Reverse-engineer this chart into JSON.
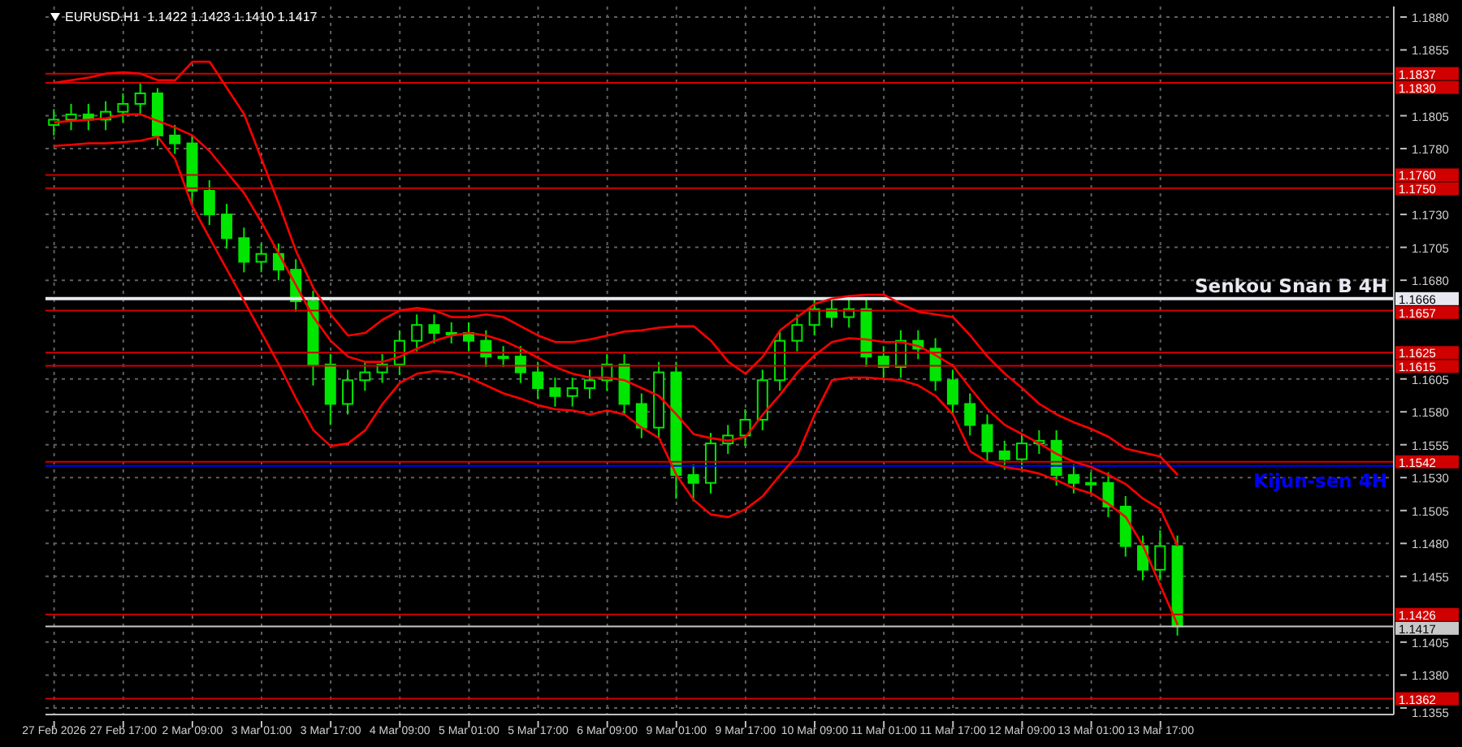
{
  "chart_data": {
    "type": "candlestick",
    "title": "EURUSD.H1  1.1422 1.1423 1.1410 1.1417",
    "color": "#00e600",
    "grid": true,
    "categories": [
      "27 Feb 2026",
      null,
      null,
      null,
      "27 Feb 17:00",
      null,
      null,
      null,
      "2 Mar 09:00",
      null,
      null,
      null,
      "3 Mar 01:00",
      null,
      null,
      null,
      "3 Mar 17:00",
      null,
      null,
      null,
      "4 Mar 09:00",
      null,
      null,
      null,
      "5 Mar 01:00",
      null,
      null,
      null,
      "5 Mar 17:00",
      null,
      null,
      null,
      "6 Mar 09:00",
      null,
      null,
      null,
      "9 Mar 01:00",
      null,
      null,
      null,
      "9 Mar 17:00",
      null,
      null,
      null,
      "10 Mar 09:00",
      null,
      null,
      null,
      "11 Mar 01:00",
      null,
      null,
      null,
      "11 Mar 17:00",
      null,
      null,
      null,
      "12 Mar 09:00",
      null,
      null,
      null,
      "13 Mar 01:00",
      null,
      null,
      null,
      "13 Mar 17:00",
      null,
      null,
      null,
      null,
      null,
      null,
      null,
      null,
      null,
      null,
      null,
      null,
      null
    ],
    "ohlc": [
      [
        1.1798,
        1.181,
        1.179,
        1.1802
      ],
      [
        1.1802,
        1.1814,
        1.1794,
        1.1806
      ],
      [
        1.1806,
        1.1814,
        1.1794,
        1.1802
      ],
      [
        1.1802,
        1.1816,
        1.1794,
        1.1808
      ],
      [
        1.1808,
        1.1822,
        1.18,
        1.1814
      ],
      [
        1.1814,
        1.183,
        1.1806,
        1.1822
      ],
      [
        1.1822,
        1.1826,
        1.1782,
        1.179
      ],
      [
        1.179,
        1.1798,
        1.1776,
        1.1784
      ],
      [
        1.1784,
        1.179,
        1.174,
        1.1748
      ],
      [
        1.1748,
        1.1756,
        1.1722,
        1.173
      ],
      [
        1.173,
        1.1738,
        1.1704,
        1.1712
      ],
      [
        1.1712,
        1.172,
        1.1686,
        1.1694
      ],
      [
        1.1694,
        1.1708,
        1.1686,
        1.17
      ],
      [
        1.17,
        1.1708,
        1.168,
        1.1688
      ],
      [
        1.1688,
        1.1696,
        1.1656,
        1.1664
      ],
      [
        1.1664,
        1.1672,
        1.16,
        1.1616
      ],
      [
        1.1616,
        1.1624,
        1.157,
        1.1586
      ],
      [
        1.1586,
        1.1612,
        1.1578,
        1.1604
      ],
      [
        1.1604,
        1.1618,
        1.1596,
        1.161
      ],
      [
        1.161,
        1.1624,
        1.1602,
        1.1616
      ],
      [
        1.1616,
        1.1642,
        1.1608,
        1.1634
      ],
      [
        1.1634,
        1.1654,
        1.1626,
        1.1646
      ],
      [
        1.1646,
        1.1654,
        1.1632,
        1.164
      ],
      [
        1.164,
        1.1648,
        1.1632,
        1.164
      ],
      [
        1.164,
        1.1648,
        1.1626,
        1.1634
      ],
      [
        1.1634,
        1.1642,
        1.1614,
        1.1622
      ],
      [
        1.1622,
        1.163,
        1.1614,
        1.1622
      ],
      [
        1.1622,
        1.163,
        1.1602,
        1.161
      ],
      [
        1.161,
        1.1618,
        1.159,
        1.1598
      ],
      [
        1.1598,
        1.1606,
        1.1584,
        1.1592
      ],
      [
        1.1592,
        1.1606,
        1.1584,
        1.1598
      ],
      [
        1.1598,
        1.1612,
        1.159,
        1.1604
      ],
      [
        1.1604,
        1.1624,
        1.1596,
        1.1616
      ],
      [
        1.1616,
        1.1624,
        1.1578,
        1.1586
      ],
      [
        1.1586,
        1.1594,
        1.156,
        1.1568
      ],
      [
        1.1568,
        1.1618,
        1.156,
        1.161
      ],
      [
        1.161,
        1.1618,
        1.1514,
        1.1532
      ],
      [
        1.1532,
        1.154,
        1.1512,
        1.1526
      ],
      [
        1.1526,
        1.1564,
        1.1518,
        1.1556
      ],
      [
        1.1556,
        1.157,
        1.1548,
        1.1562
      ],
      [
        1.1562,
        1.1582,
        1.1554,
        1.1574
      ],
      [
        1.1574,
        1.1612,
        1.1566,
        1.1604
      ],
      [
        1.1604,
        1.1642,
        1.1596,
        1.1634
      ],
      [
        1.1634,
        1.1654,
        1.1626,
        1.1646
      ],
      [
        1.1646,
        1.1666,
        1.1638,
        1.1658
      ],
      [
        1.1658,
        1.1666,
        1.1644,
        1.1652
      ],
      [
        1.1652,
        1.1666,
        1.1644,
        1.1658
      ],
      [
        1.1658,
        1.1666,
        1.1614,
        1.1622
      ],
      [
        1.1622,
        1.163,
        1.1606,
        1.1614
      ],
      [
        1.1614,
        1.1642,
        1.1606,
        1.1634
      ],
      [
        1.1634,
        1.1642,
        1.162,
        1.1628
      ],
      [
        1.1628,
        1.1636,
        1.1596,
        1.1604
      ],
      [
        1.1604,
        1.1612,
        1.1578,
        1.1586
      ],
      [
        1.1586,
        1.1594,
        1.1562,
        1.157
      ],
      [
        1.157,
        1.1578,
        1.1542,
        1.155
      ],
      [
        1.155,
        1.1558,
        1.1536,
        1.1544
      ],
      [
        1.1544,
        1.1564,
        1.1536,
        1.1556
      ],
      [
        1.1556,
        1.1566,
        1.1548,
        1.1558
      ],
      [
        1.1558,
        1.1566,
        1.1524,
        1.1532
      ],
      [
        1.1532,
        1.154,
        1.1518,
        1.1526
      ],
      [
        1.1526,
        1.1534,
        1.1518,
        1.1526
      ],
      [
        1.1526,
        1.1534,
        1.15,
        1.1508
      ],
      [
        1.1508,
        1.1516,
        1.147,
        1.1478
      ],
      [
        1.1478,
        1.1486,
        1.1452,
        1.146
      ],
      [
        1.146,
        1.149,
        1.1452,
        1.1478
      ],
      [
        1.1478,
        1.1486,
        1.141,
        1.1417
      ],
      null,
      null,
      null,
      null,
      null,
      null,
      null,
      null,
      null,
      null,
      null,
      null
    ],
    "series": [
      {
        "type": "line",
        "color": "#ff0000",
        "values": [
          1.183,
          1.1832,
          1.1834,
          1.1837,
          1.1838,
          1.1837,
          1.1832,
          1.1832,
          1.1846,
          1.1846,
          1.1826,
          1.1806,
          1.1772,
          1.1738,
          1.1702,
          1.1674,
          1.1654,
          1.1638,
          1.164,
          1.165,
          1.1657,
          1.1659,
          1.1657,
          1.1652,
          1.1652,
          1.1654,
          1.1652,
          1.1645,
          1.1638,
          1.1633,
          1.1633,
          1.1635,
          1.1638,
          1.1641,
          1.1642,
          1.1644,
          1.1645,
          1.1645,
          1.1634,
          1.1618,
          1.1609,
          1.1622,
          1.1642,
          1.1652,
          1.1662,
          1.1666,
          1.1668,
          1.1669,
          1.1669,
          1.1662,
          1.1656,
          1.1654,
          1.1652,
          1.1638,
          1.1622,
          1.1609,
          1.1598,
          1.1586,
          1.1578,
          1.1572,
          1.1567,
          1.1561,
          1.1552,
          1.1549,
          1.1546,
          1.1532,
          null,
          null,
          null,
          null,
          null,
          null,
          null,
          null,
          null,
          null,
          null,
          null
        ]
      },
      {
        "type": "line",
        "color": "#ff0000",
        "values": [
          1.18,
          1.1801,
          1.1802,
          1.1803,
          1.1806,
          1.1806,
          1.1801,
          1.1796,
          1.179,
          1.1778,
          1.1762,
          1.1746,
          1.1724,
          1.17,
          1.1676,
          1.1652,
          1.1634,
          1.1622,
          1.1618,
          1.1618,
          1.1622,
          1.1628,
          1.1634,
          1.1638,
          1.164,
          1.1638,
          1.1634,
          1.1628,
          1.1621,
          1.1614,
          1.1609,
          1.1606,
          1.1606,
          1.1604,
          1.1598,
          1.1592,
          1.1578,
          1.1563,
          1.156,
          1.1558,
          1.1561,
          1.1578,
          1.1593,
          1.161,
          1.1623,
          1.1633,
          1.1636,
          1.1635,
          1.1633,
          1.1633,
          1.163,
          1.1623,
          1.1615,
          1.1598,
          1.1582,
          1.157,
          1.1563,
          1.1556,
          1.1548,
          1.1542,
          1.1538,
          1.1532,
          1.1525,
          1.1514,
          1.1506,
          1.1478,
          null,
          null,
          null,
          null,
          null,
          null,
          null,
          null,
          null,
          null,
          null,
          null
        ]
      },
      {
        "type": "line",
        "color": "#ff0000",
        "values": [
          1.1782,
          1.1783,
          1.1784,
          1.1784,
          1.1785,
          1.1786,
          1.1789,
          1.1772,
          1.1736,
          1.1712,
          1.1688,
          1.1664,
          1.164,
          1.1616,
          1.159,
          1.1566,
          1.1554,
          1.1556,
          1.1566,
          1.1586,
          1.1602,
          1.1609,
          1.1611,
          1.161,
          1.1606,
          1.16,
          1.1594,
          1.159,
          1.1585,
          1.1582,
          1.1581,
          1.1578,
          1.1581,
          1.1578,
          1.1568,
          1.156,
          1.1532,
          1.1513,
          1.1502,
          1.15,
          1.1506,
          1.1516,
          1.1532,
          1.1547,
          1.1578,
          1.1604,
          1.1606,
          1.1606,
          1.1605,
          1.1604,
          1.16,
          1.1592,
          1.1578,
          1.155,
          1.1542,
          1.1538,
          1.1536,
          1.1533,
          1.1528,
          1.1522,
          1.1518,
          1.151,
          1.15,
          1.1478,
          1.1448,
          1.1418,
          null,
          null,
          null,
          null,
          null,
          null,
          null,
          null,
          null,
          null,
          null,
          null
        ]
      }
    ],
    "ylim": [
      1.135,
      1.1888
    ],
    "yticks": [
      {
        "value": 1.1355,
        "label": "1.1355"
      },
      {
        "value": 1.138,
        "label": "1.1380"
      },
      {
        "value": 1.1405,
        "label": "1.1405"
      },
      {
        "value": 1.1455,
        "label": "1.1455"
      },
      {
        "value": 1.148,
        "label": "1.1480"
      },
      {
        "value": 1.1505,
        "label": "1.1505"
      },
      {
        "value": 1.153,
        "label": "1.1530"
      },
      {
        "value": 1.1555,
        "label": "1.1555"
      },
      {
        "value": 1.158,
        "label": "1.1580"
      },
      {
        "value": 1.1605,
        "label": "1.1605"
      },
      {
        "value": 1.168,
        "label": "1.1680"
      },
      {
        "value": 1.1705,
        "label": "1.1705"
      },
      {
        "value": 1.173,
        "label": "1.1730"
      },
      {
        "value": 1.178,
        "label": "1.1780"
      },
      {
        "value": 1.1805,
        "label": "1.1805"
      },
      {
        "value": 1.1855,
        "label": "1.1855"
      },
      {
        "value": 1.188,
        "label": "1.1880"
      }
    ],
    "ref_lines": [
      {
        "axis": "y",
        "value": 1.1837,
        "label": "1.1837",
        "color": "#d00000"
      },
      {
        "axis": "y",
        "value": 1.183,
        "label": "1.1830",
        "color": "#d00000"
      },
      {
        "axis": "y",
        "value": 1.176,
        "label": "1.1760",
        "color": "#d00000"
      },
      {
        "axis": "y",
        "value": 1.175,
        "label": "1.1750",
        "color": "#d00000"
      },
      {
        "axis": "y",
        "value": 1.1666,
        "label": "1.1666",
        "color": "#e8e8f0"
      },
      {
        "axis": "y",
        "value": 1.1657,
        "label": "1.1657",
        "color": "#d00000"
      },
      {
        "axis": "y",
        "value": 1.1625,
        "label": "1.1625",
        "color": "#d00000"
      },
      {
        "axis": "y",
        "value": 1.1615,
        "label": "1.1615",
        "color": "#d00000"
      },
      {
        "axis": "y",
        "value": 1.1542,
        "label": "1.1542",
        "color": "#d00000"
      },
      {
        "axis": "y",
        "value": 1.1539,
        "color": "#0000ff"
      },
      {
        "axis": "y",
        "value": 1.1426,
        "label": "1.1426",
        "color": "#d00000"
      },
      {
        "axis": "y",
        "value": 1.1417,
        "label": "1.1417",
        "color": "#c8c8c8"
      },
      {
        "axis": "y",
        "value": 1.1362,
        "label": "1.1362",
        "color": "#d00000"
      }
    ],
    "annotations": [
      "Senkou Snan B 4H",
      "Kijun-sen 4H"
    ]
  }
}
